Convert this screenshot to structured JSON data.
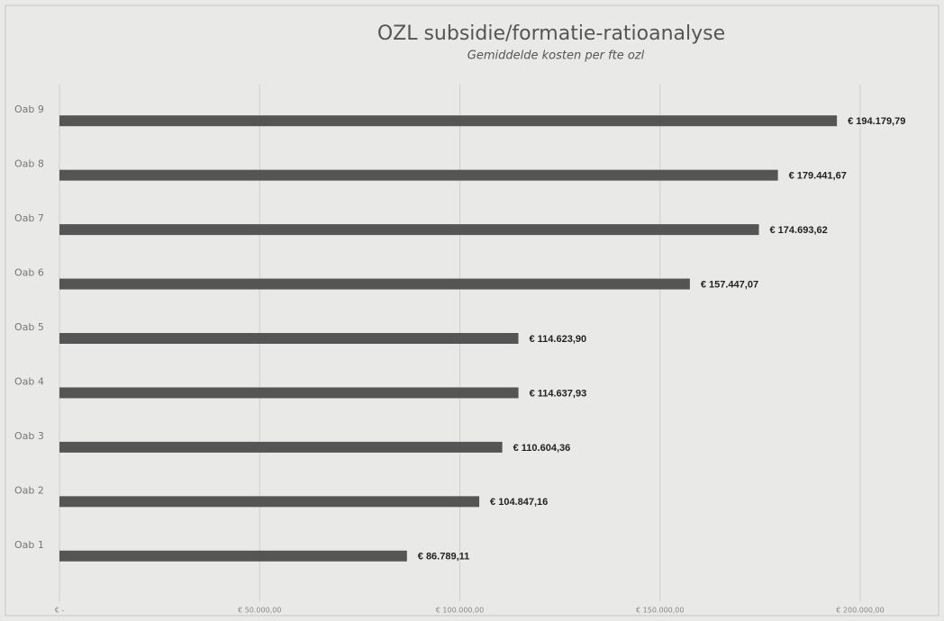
{
  "chart_data": {
    "type": "bar",
    "orientation": "horizontal",
    "title": "OZL subsidie/formatie-ratioanalyse",
    "subtitle": "Gemiddelde kosten per fte ozl",
    "categories": [
      "Oab 1",
      "Oab 2",
      "Oab 3",
      "Oab 4",
      "Oab 5",
      "Oab 6",
      "Oab 7",
      "Oab 8",
      "Oab 9"
    ],
    "values": [
      86789.11,
      104847.16,
      110604.36,
      114637.93,
      114623.9,
      157447.07,
      174693.62,
      179441.67,
      194179.79
    ],
    "value_labels": [
      "€ 86.789,11",
      "€ 104.847,16",
      "€ 110.604,36",
      "€ 114.637,93",
      "€ 114.623,90",
      "€ 157.447,07",
      "€ 174.693,62",
      "€ 179.441,67",
      "€ 194.179,79"
    ],
    "color": "#555555",
    "xlim": [
      0,
      200000
    ],
    "xticks": [
      {
        "value": 0,
        "label": "€ -"
      },
      {
        "value": 50000,
        "label": "€ 50.000,00"
      },
      {
        "value": 100000,
        "label": "€ 100.000,00"
      },
      {
        "value": 150000,
        "label": "€ 150.000,00"
      },
      {
        "value": 200000,
        "label": "€ 200.000,00"
      }
    ],
    "grid": true
  }
}
